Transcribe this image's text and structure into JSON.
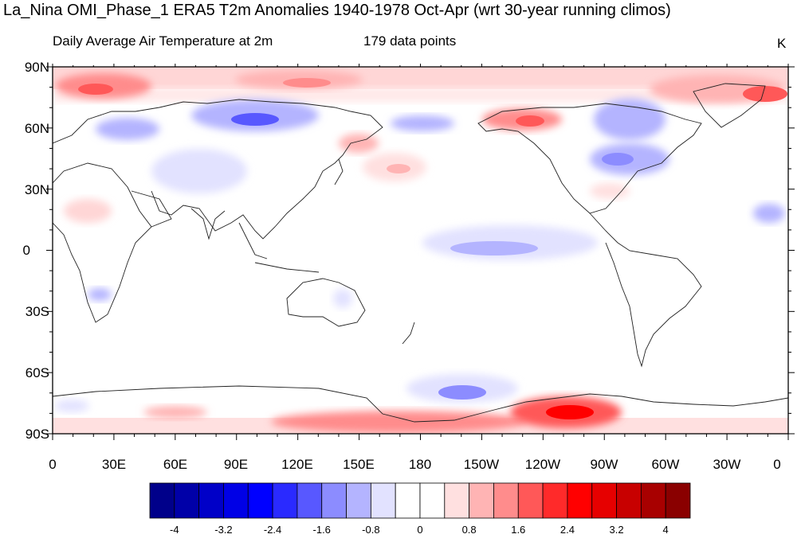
{
  "title": "La_Nina OMI_Phase_1 ERA5 T2m Anomalies 1940-1978 Oct-Apr (wrt 30-year running climos)",
  "subtitle_left": "Daily Average Air Temperature at 2m",
  "subtitle_center": "179 data points",
  "subtitle_right": "K",
  "lat_labels": [
    "90N",
    "60N",
    "30N",
    "0",
    "30S",
    "60S",
    "90S"
  ],
  "lon_labels": [
    "0",
    "30E",
    "60E",
    "90E",
    "120E",
    "150E",
    "180",
    "150W",
    "120W",
    "90W",
    "60W",
    "30W",
    "0"
  ],
  "colorbar": {
    "colors": [
      "#00008a",
      "#0000a8",
      "#0000c8",
      "#0000e6",
      "#0000ff",
      "#2a2aff",
      "#5858ff",
      "#8c8cff",
      "#b4b4ff",
      "#e2e2ff",
      "#ffffff",
      "#ffffff",
      "#ffe0e0",
      "#ffb4b4",
      "#ff8c8c",
      "#ff5858",
      "#ff2a2a",
      "#ff0000",
      "#e60000",
      "#c80000",
      "#a80000",
      "#8a0000"
    ],
    "labels": [
      "-4",
      "-3.2",
      "-2.4",
      "-1.6",
      "-0.8",
      "0",
      "0.8",
      "1.6",
      "2.4",
      "3.2",
      "4"
    ]
  }
}
